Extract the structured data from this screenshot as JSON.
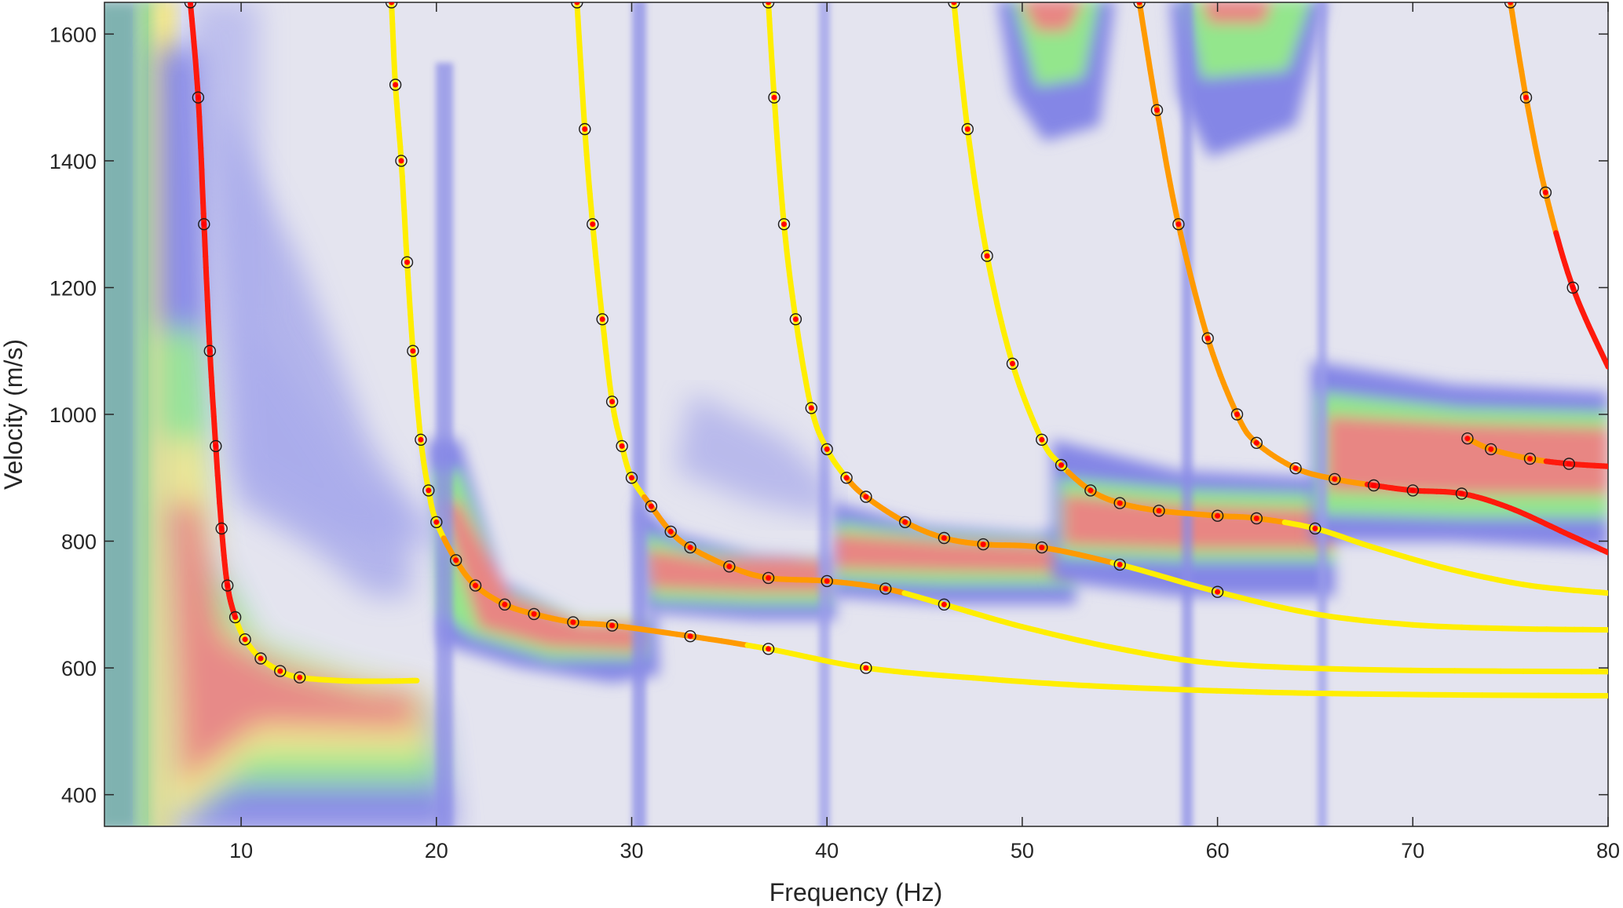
{
  "chart_data": {
    "type": "scatter",
    "title": "",
    "xlabel": "Frequency (Hz)",
    "ylabel": "Velocity (m/s)",
    "xlim": [
      3,
      80
    ],
    "ylim": [
      350,
      1650
    ],
    "xticks": [
      10,
      20,
      30,
      40,
      50,
      60,
      70,
      80
    ],
    "yticks": [
      400,
      600,
      800,
      1000,
      1200,
      1400,
      1600
    ],
    "grid": false,
    "legend": "none",
    "background": "dispersion spectrum heatmap (jet-like colormap: pale lavender = low energy, blue, green, yellow, red = high energy)",
    "colors": {
      "low": "#e2e2ef",
      "blue": "#7f82e6",
      "green": "#8fea86",
      "yellow": "#f4e98a",
      "red": "#e88583",
      "curve_yellow": "#ffee00",
      "curve_orange": "#ff9a00",
      "curve_red": "#ff1a0d",
      "picks_red": "#ff0000",
      "circle_edge": "#1a1a1a"
    },
    "series": [
      {
        "values": [
          [
            7.4,
            1650
          ],
          [
            7.8,
            1500
          ],
          [
            8.1,
            1300
          ],
          [
            8.4,
            1100
          ],
          [
            8.7,
            950
          ],
          [
            9.0,
            820
          ],
          [
            9.3,
            730
          ],
          [
            9.7,
            680
          ],
          [
            10.2,
            645
          ],
          [
            11,
            615
          ],
          [
            12,
            595
          ],
          [
            13,
            585
          ],
          [
            15,
            580
          ],
          [
            17,
            579
          ],
          [
            19,
            580
          ]
        ]
      },
      {
        "values": [
          [
            17.7,
            1650
          ],
          [
            17.9,
            1520
          ],
          [
            18.2,
            1400
          ],
          [
            18.5,
            1240
          ],
          [
            18.8,
            1100
          ],
          [
            19.2,
            960
          ],
          [
            19.6,
            880
          ],
          [
            20,
            830
          ],
          [
            21,
            770
          ],
          [
            22,
            730
          ],
          [
            23.5,
            700
          ],
          [
            25,
            685
          ],
          [
            27,
            672
          ],
          [
            29,
            667
          ],
          [
            33,
            650
          ],
          [
            37,
            630
          ],
          [
            42,
            600
          ],
          [
            48,
            583
          ],
          [
            54,
            571
          ],
          [
            62,
            562
          ],
          [
            70,
            558
          ],
          [
            80,
            556
          ]
        ]
      },
      {
        "values": [
          [
            27.2,
            1650
          ],
          [
            27.6,
            1450
          ],
          [
            28,
            1300
          ],
          [
            28.5,
            1150
          ],
          [
            29,
            1020
          ],
          [
            29.5,
            950
          ],
          [
            30,
            900
          ],
          [
            31,
            855
          ],
          [
            32,
            815
          ],
          [
            33,
            790
          ],
          [
            35,
            760
          ],
          [
            37,
            742
          ],
          [
            40,
            737
          ],
          [
            43,
            725
          ],
          [
            46,
            700
          ],
          [
            50,
            665
          ],
          [
            55,
            630
          ],
          [
            60,
            607
          ],
          [
            68,
            597
          ],
          [
            80,
            594
          ]
        ]
      },
      {
        "values": [
          [
            37,
            1650
          ],
          [
            37.3,
            1500
          ],
          [
            37.8,
            1300
          ],
          [
            38.4,
            1150
          ],
          [
            39.2,
            1010
          ],
          [
            40,
            945
          ],
          [
            41,
            900
          ],
          [
            42,
            870
          ],
          [
            44,
            830
          ],
          [
            46,
            805
          ],
          [
            48,
            795
          ],
          [
            51,
            790
          ],
          [
            55,
            763
          ],
          [
            60,
            720
          ],
          [
            65,
            685
          ],
          [
            70,
            668
          ],
          [
            75,
            662
          ],
          [
            80,
            660
          ]
        ]
      },
      {
        "values": [
          [
            46.5,
            1650
          ],
          [
            47.2,
            1450
          ],
          [
            48.2,
            1250
          ],
          [
            49.5,
            1080
          ],
          [
            51,
            960
          ],
          [
            52,
            920
          ],
          [
            53.5,
            880
          ],
          [
            55,
            860
          ],
          [
            57,
            848
          ],
          [
            60,
            840
          ],
          [
            62,
            836
          ],
          [
            65,
            820
          ],
          [
            68,
            790
          ],
          [
            72,
            755
          ],
          [
            76,
            730
          ],
          [
            80,
            718
          ]
        ]
      },
      {
        "values": [
          [
            56,
            1650
          ],
          [
            56.9,
            1480
          ],
          [
            58,
            1300
          ],
          [
            59.5,
            1120
          ],
          [
            61,
            1000
          ],
          [
            62,
            955
          ],
          [
            64,
            915
          ],
          [
            66,
            898
          ],
          [
            68,
            888
          ],
          [
            70,
            880
          ],
          [
            72.5,
            875
          ],
          [
            75,
            852
          ],
          [
            78,
            810
          ],
          [
            80,
            782
          ]
        ]
      },
      {
        "values": [
          [
            75,
            1650
          ],
          [
            75.8,
            1500
          ],
          [
            76.8,
            1350
          ],
          [
            78.2,
            1200
          ],
          [
            80,
            1075
          ]
        ]
      },
      {
        "values": [
          [
            72.8,
            962
          ],
          [
            74,
            945
          ],
          [
            76,
            930
          ],
          [
            78,
            922
          ],
          [
            80,
            918
          ]
        ]
      }
    ]
  }
}
